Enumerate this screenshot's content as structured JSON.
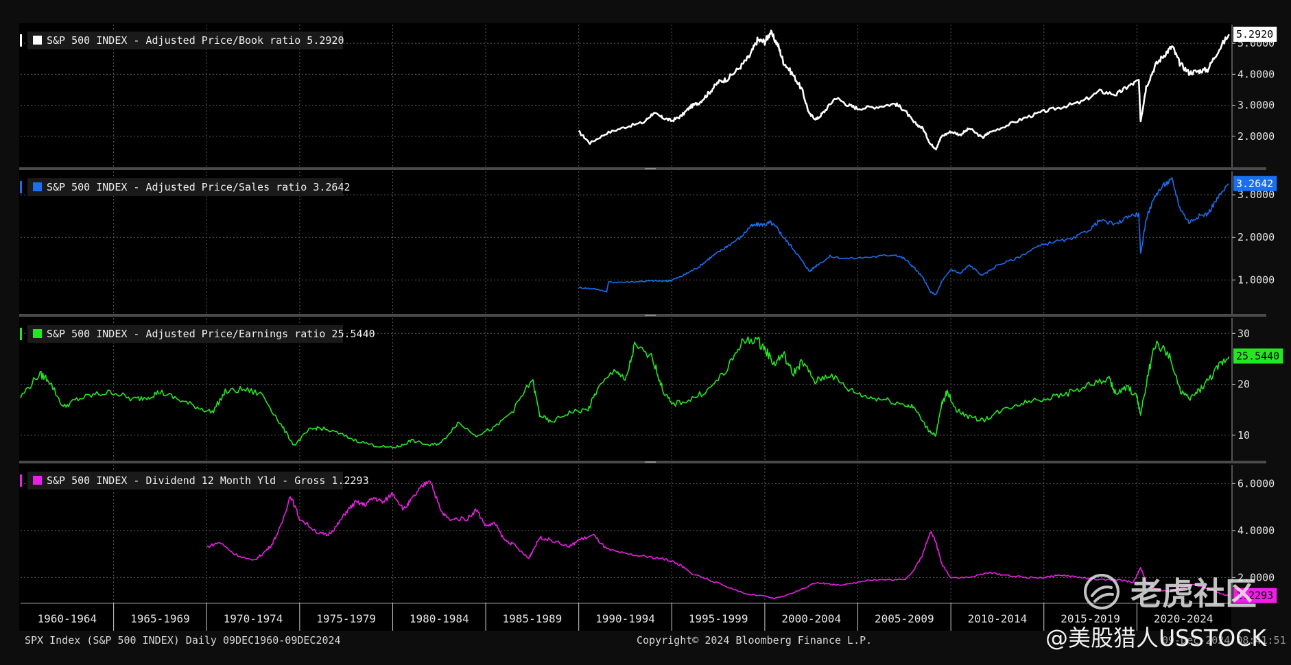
{
  "colors": {
    "background": "#000000",
    "frame": "#0d0d0d",
    "separator": "#4a4a4a",
    "grid": "#5a5a5a"
  },
  "chart_data": [
    {
      "type": "line",
      "title": "S&P 500 INDEX - Adjusted Price/Book ratio 5.2920",
      "color": "#ffffff",
      "label_text_color": "#000000",
      "last_value_label": "5.2920",
      "last_value": 5.292,
      "ylim": [
        1.0,
        5.6
      ],
      "yticks": [
        2,
        3,
        4,
        5
      ],
      "ytick_labels": [
        "2.0000",
        "3.0000",
        "4.0000",
        "5.0000"
      ],
      "x": [
        1990.0,
        1990.6,
        1991.5,
        1992.5,
        1993.5,
        1994.0,
        1994.5,
        1995.0,
        1995.5,
        1996.0,
        1996.5,
        1997.0,
        1997.5,
        1998.0,
        1998.7,
        1999.2,
        1999.6,
        2000.0,
        2000.3,
        2000.7,
        2001.0,
        2001.5,
        2002.0,
        2002.4,
        2002.8,
        2003.2,
        2003.8,
        2004.5,
        2005.0,
        2006.0,
        2007.0,
        2007.5,
        2008.0,
        2008.5,
        2008.9,
        2009.2,
        2009.5,
        2010.0,
        2010.5,
        2011.0,
        2011.7,
        2012.0,
        2013.0,
        2014.0,
        2015.0,
        2016.0,
        2017.0,
        2018.0,
        2018.9,
        2019.5,
        2020.1,
        2020.2,
        2020.5,
        2021.0,
        2021.5,
        2021.9,
        2022.3,
        2022.8,
        2023.3,
        2023.8,
        2024.3,
        2024.95
      ],
      "values": [
        2.15,
        1.78,
        2.1,
        2.3,
        2.45,
        2.75,
        2.6,
        2.5,
        2.65,
        2.95,
        3.1,
        3.4,
        3.75,
        3.85,
        4.25,
        4.6,
        5.1,
        5.05,
        5.35,
        4.95,
        4.4,
        4.0,
        3.5,
        2.7,
        2.55,
        2.8,
        3.25,
        3.0,
        2.9,
        2.95,
        3.05,
        2.85,
        2.45,
        2.25,
        1.75,
        1.6,
        2.0,
        2.15,
        2.05,
        2.25,
        1.95,
        2.1,
        2.35,
        2.6,
        2.8,
        2.95,
        3.1,
        3.45,
        3.35,
        3.6,
        3.8,
        2.5,
        3.6,
        4.3,
        4.65,
        4.9,
        4.35,
        4.05,
        4.1,
        4.15,
        4.7,
        5.29
      ]
    },
    {
      "type": "line",
      "title": "S&P 500 INDEX - Adjusted Price/Sales ratio 3.2642",
      "color": "#1a6ef0",
      "label_text_color": "#ffffff",
      "last_value_label": "3.2642",
      "last_value": 3.264,
      "ylim": [
        0.2,
        3.55
      ],
      "yticks": [
        1,
        2,
        3
      ],
      "ytick_labels": [
        "1.0000",
        "2.0000",
        "3.0000"
      ],
      "x": [
        1990.0,
        1990.6,
        1991.0,
        1991.5,
        1991.6,
        1992.5,
        1993.5,
        1994.0,
        1994.7,
        1995.0,
        1995.5,
        1996.0,
        1996.5,
        1997.0,
        1997.5,
        1998.0,
        1998.7,
        1999.2,
        1999.6,
        2000.0,
        2000.3,
        2000.7,
        2001.0,
        2001.5,
        2002.0,
        2002.4,
        2002.8,
        2003.5,
        2004.5,
        2006.0,
        2007.0,
        2007.5,
        2008.0,
        2008.5,
        2008.9,
        2009.2,
        2009.5,
        2010.0,
        2010.5,
        2011.0,
        2011.7,
        2012.5,
        2013.5,
        2014.5,
        2015.5,
        2016.5,
        2017.5,
        2018.0,
        2018.9,
        2019.5,
        2020.1,
        2020.2,
        2020.5,
        2021.0,
        2021.5,
        2021.9,
        2022.3,
        2022.8,
        2023.3,
        2023.8,
        2024.3,
        2024.95
      ],
      "values": [
        0.82,
        0.8,
        0.78,
        0.72,
        0.95,
        0.95,
        0.97,
        0.98,
        0.97,
        1.0,
        1.08,
        1.2,
        1.32,
        1.5,
        1.65,
        1.8,
        2.0,
        2.25,
        2.3,
        2.3,
        2.35,
        2.2,
        2.0,
        1.75,
        1.45,
        1.2,
        1.35,
        1.55,
        1.5,
        1.55,
        1.6,
        1.5,
        1.3,
        1.05,
        0.72,
        0.65,
        0.95,
        1.25,
        1.15,
        1.35,
        1.1,
        1.35,
        1.5,
        1.75,
        1.9,
        1.95,
        2.2,
        2.4,
        2.3,
        2.5,
        2.55,
        1.6,
        2.45,
        3.0,
        3.25,
        3.35,
        2.7,
        2.35,
        2.5,
        2.55,
        2.9,
        3.26
      ]
    },
    {
      "type": "line",
      "title": "S&P 500 INDEX - Adjusted Price/Earnings ratio 25.5440",
      "color": "#22e822",
      "label_text_color": "#000000",
      "last_value_label": "25.5440",
      "last_value": 25.544,
      "ylim": [
        5,
        33
      ],
      "yticks": [
        10,
        20,
        30
      ],
      "ytick_labels": [
        "10",
        "20",
        "30"
      ],
      "x": [
        1960.0,
        1961.0,
        1961.5,
        1962.3,
        1963.0,
        1964.0,
        1965.0,
        1966.0,
        1966.8,
        1967.5,
        1968.5,
        1969.5,
        1970.3,
        1971.0,
        1972.0,
        1973.0,
        1974.0,
        1974.7,
        1975.5,
        1976.0,
        1977.0,
        1978.0,
        1979.0,
        1980.0,
        1980.5,
        1981.0,
        1982.0,
        1982.6,
        1983.5,
        1984.5,
        1985.5,
        1986.5,
        1987.5,
        1987.9,
        1988.5,
        1989.5,
        1990.5,
        1991.0,
        1992.0,
        1992.5,
        1993.0,
        1994.0,
        1994.5,
        1995.0,
        1996.0,
        1997.0,
        1998.0,
        1998.7,
        1999.5,
        2000.0,
        2000.5,
        2001.0,
        2001.5,
        2002.0,
        2002.7,
        2003.5,
        2004.5,
        2005.5,
        2006.5,
        2007.5,
        2008.0,
        2008.8,
        2009.2,
        2009.5,
        2009.8,
        2010.3,
        2011.0,
        2011.8,
        2012.5,
        2013.5,
        2014.5,
        2015.5,
        2016.5,
        2017.5,
        2018.5,
        2018.9,
        2019.5,
        2020.0,
        2020.2,
        2020.6,
        2021.0,
        2021.7,
        2022.3,
        2022.8,
        2023.4,
        2024.0,
        2024.5,
        2024.95
      ],
      "values": [
        17.5,
        22.0,
        21.0,
        15.5,
        17.0,
        18.0,
        18.5,
        17.0,
        17.5,
        18.5,
        17.0,
        15.5,
        14.5,
        18.5,
        19.0,
        18.0,
        12.0,
        8.0,
        11.0,
        11.5,
        10.5,
        9.0,
        8.0,
        7.5,
        8.0,
        9.0,
        8.0,
        8.5,
        12.5,
        10.0,
        11.5,
        15.0,
        21.0,
        14.0,
        12.5,
        14.5,
        15.0,
        19.0,
        23.0,
        20.5,
        27.5,
        25.0,
        19.0,
        16.0,
        17.0,
        19.0,
        23.0,
        28.0,
        29.0,
        27.0,
        24.0,
        26.0,
        22.0,
        24.5,
        20.5,
        22.0,
        19.0,
        17.5,
        17.0,
        16.0,
        15.5,
        11.0,
        10.0,
        16.0,
        18.5,
        15.0,
        13.5,
        13.0,
        14.5,
        16.0,
        17.0,
        17.5,
        18.5,
        20.0,
        21.0,
        18.0,
        19.5,
        17.5,
        14.0,
        22.0,
        28.0,
        26.0,
        19.0,
        17.0,
        19.0,
        21.5,
        24.0,
        25.5
      ]
    },
    {
      "type": "line",
      "title": "S&P 500 INDEX - Dividend 12 Month Yld - Gross 1.2293",
      "color": "#ee1ee6",
      "label_text_color": "#000000",
      "last_value_label": "1.2293",
      "last_value": 1.229,
      "ylim": [
        0.9,
        6.8
      ],
      "yticks": [
        2,
        4,
        6
      ],
      "ytick_labels": [
        "2.0000",
        "4.0000",
        "6.0000"
      ],
      "x": [
        1970.0,
        1970.7,
        1971.5,
        1972.5,
        1973.0,
        1973.5,
        1974.0,
        1974.5,
        1975.0,
        1976.0,
        1976.5,
        1977.0,
        1977.5,
        1978.0,
        1978.5,
        1979.0,
        1979.5,
        1980.0,
        1980.6,
        1981.0,
        1981.5,
        1982.0,
        1982.6,
        1983.0,
        1984.0,
        1984.5,
        1985.0,
        1985.5,
        1986.0,
        1986.5,
        1987.3,
        1987.5,
        1987.9,
        1988.5,
        1989.5,
        1990.0,
        1990.8,
        1991.5,
        1992.5,
        1993.5,
        1994.5,
        1995.0,
        1995.5,
        1996.0,
        1997.0,
        1998.0,
        1999.0,
        2000.0,
        2000.5,
        2001.0,
        2002.0,
        2002.8,
        2003.5,
        2004.5,
        2005.5,
        2006.5,
        2007.5,
        2008.0,
        2008.5,
        2008.9,
        2009.2,
        2009.5,
        2010.0,
        2011.0,
        2012.0,
        2013.0,
        2014.0,
        2015.0,
        2016.0,
        2017.0,
        2018.0,
        2019.0,
        2019.8,
        2020.2,
        2020.5,
        2021.0,
        2021.8,
        2022.5,
        2023.0,
        2023.5,
        2024.0,
        2024.5,
        2024.95
      ],
      "values": [
        3.3,
        3.5,
        3.0,
        2.7,
        3.0,
        3.4,
        4.2,
        5.5,
        4.5,
        3.9,
        3.8,
        4.2,
        4.8,
        5.2,
        5.1,
        5.4,
        5.2,
        5.6,
        4.9,
        5.3,
        5.8,
        6.2,
        4.8,
        4.5,
        4.5,
        4.9,
        4.2,
        4.3,
        3.6,
        3.4,
        2.8,
        3.1,
        3.7,
        3.6,
        3.3,
        3.6,
        3.8,
        3.2,
        3.0,
        2.9,
        2.8,
        2.7,
        2.5,
        2.2,
        1.9,
        1.6,
        1.3,
        1.2,
        1.1,
        1.2,
        1.5,
        1.8,
        1.7,
        1.7,
        1.9,
        1.9,
        1.9,
        2.3,
        3.0,
        4.0,
        3.5,
        2.6,
        2.0,
        2.0,
        2.2,
        2.1,
        2.0,
        2.0,
        2.1,
        2.0,
        1.9,
        1.9,
        1.8,
        2.4,
        1.8,
        1.5,
        1.4,
        1.6,
        1.7,
        1.6,
        1.5,
        1.3,
        1.23
      ]
    }
  ],
  "x_axis": {
    "xlim": [
      1960.0,
      2025.0
    ],
    "tick_labels": [
      "1960-1964",
      "1965-1969",
      "1970-1974",
      "1975-1979",
      "1980-1984",
      "1985-1989",
      "1990-1994",
      "1995-1999",
      "2000-2004",
      "2005-2009",
      "2010-2014",
      "2015-2019",
      "2020-2024"
    ]
  },
  "footer": {
    "left": "SPX Index (S&P 500 INDEX)  Daily 09DEC1960-09DEC2024",
    "center": "Copyright© 2024 Bloomberg Finance L.P.",
    "right": "09-Dec-2024 08:41:51"
  },
  "watermark": {
    "top_text": "老虎社区",
    "bottom_text": "@美股猎人USSTOCK",
    "logo_icon": "tiger-logo-icon"
  }
}
